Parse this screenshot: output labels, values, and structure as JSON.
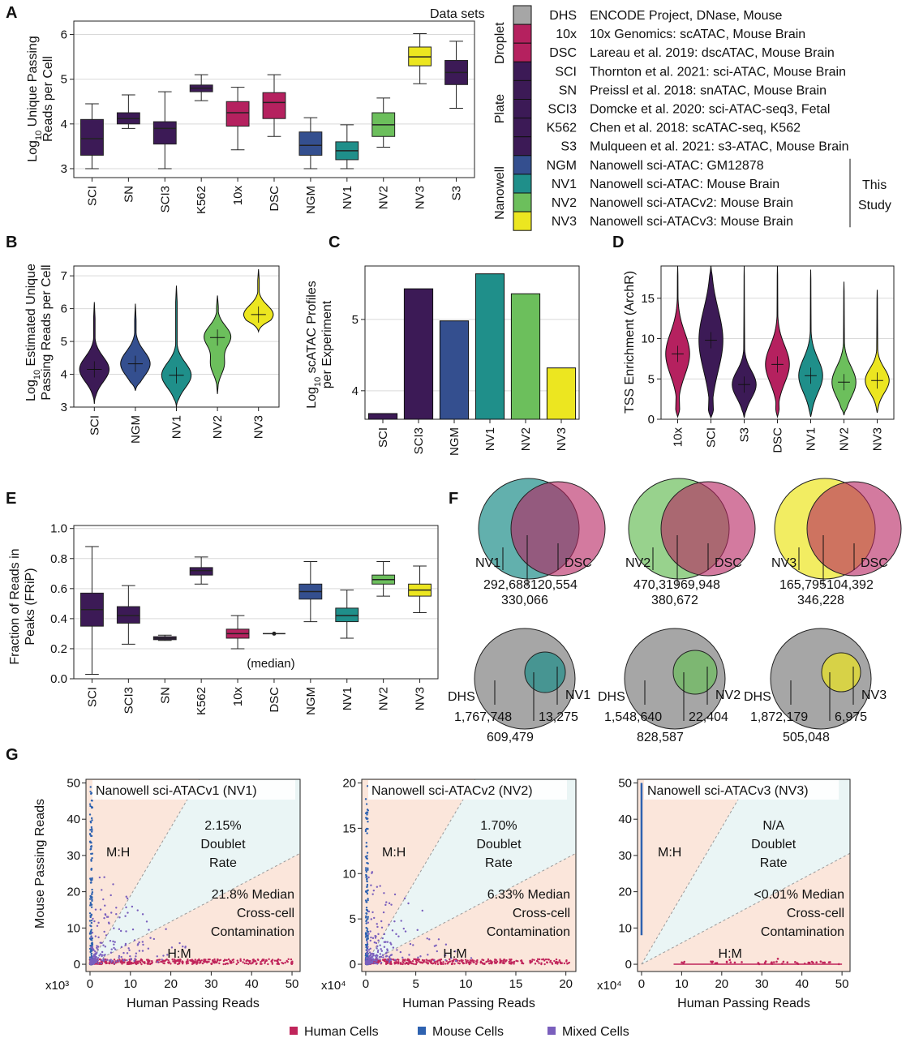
{
  "colors": {
    "DHS": "#a6a6a6",
    "10x": "#b5215f",
    "DSC": "#b5215f",
    "SCI": "#3c1a56",
    "SN": "#3c1a56",
    "SCI3": "#3c1a56",
    "K562": "#3c1a56",
    "S3": "#3c1a56",
    "NGM": "#344f8f",
    "NV1": "#1f8f8a",
    "NV2": "#6cbf5c",
    "NV3": "#ece620",
    "human": "#c0255b",
    "mouse": "#2e62b0",
    "mixed": "#7a5fbd",
    "region_pink": "#fbe6db",
    "region_blue": "#eaf5f5"
  },
  "panels": {
    "A": "A",
    "B": "B",
    "C": "C",
    "D": "D",
    "E": "E",
    "F": "F",
    "G": "G"
  },
  "legend": {
    "title": "Data sets",
    "groups": [
      {
        "name": "Droplet"
      },
      {
        "name": "Plate"
      },
      {
        "name": "Nanowell"
      }
    ],
    "entries": [
      {
        "code": "DHS",
        "desc": "ENCODE Project, DNase, Mouse"
      },
      {
        "code": "10x",
        "desc": "10x Genomics: scATAC, Mouse Brain"
      },
      {
        "code": "DSC",
        "desc": "Lareau et  al. 2019: dscATAC, Mouse Brain"
      },
      {
        "code": "SCI",
        "desc": "Thornton et al. 2021: sci-ATAC, Mouse Brain"
      },
      {
        "code": "SN",
        "desc": "Preissl et  al. 2018: snATAC, Mouse Brain"
      },
      {
        "code": "SCI3",
        "desc": "Domcke et al. 2020: sci-ATAC-seq3, Fetal"
      },
      {
        "code": "K562",
        "desc": "Chen et al. 2018: scATAC-seq, K562"
      },
      {
        "code": "S3",
        "desc": "Mulqueen et al. 2021: s3-ATAC, Mouse Brain"
      },
      {
        "code": "NGM",
        "desc": "Nanowell sci-ATAC: GM12878"
      },
      {
        "code": "NV1",
        "desc": "Nanowell sci-ATAC: Mouse Brain"
      },
      {
        "code": "NV2",
        "desc": "Nanowell sci-ATACv2: Mouse Brain"
      },
      {
        "code": "NV3",
        "desc": "Nanowell sci-ATACv3: Mouse Brain"
      }
    ],
    "study_line1": "This",
    "study_line2": "Study"
  },
  "chart_data": [
    {
      "id": "A",
      "type": "box",
      "ylabel_prefix": "Log",
      "ylabel_sub": "10",
      "ylabel_rest": " Unique Passing",
      "ylabel_line2": "Reads per Cell",
      "ylim": [
        2.8,
        6.3
      ],
      "yticks": [
        3,
        4,
        5,
        6
      ],
      "categories": [
        "SCI",
        "SN",
        "SCI3",
        "K562",
        "10x",
        "DSC",
        "NGM",
        "NV1",
        "NV2",
        "NV3",
        "S3"
      ],
      "boxes": [
        {
          "min": 3.0,
          "q1": 3.3,
          "median": 3.67,
          "q3": 4.1,
          "max": 4.45
        },
        {
          "min": 3.9,
          "q1": 4.0,
          "median": 4.12,
          "q3": 4.25,
          "max": 4.65
        },
        {
          "min": 3.0,
          "q1": 3.55,
          "median": 3.9,
          "q3": 4.05,
          "max": 4.72
        },
        {
          "min": 4.52,
          "q1": 4.72,
          "median": 4.8,
          "q3": 4.87,
          "max": 5.1
        },
        {
          "min": 3.42,
          "q1": 3.95,
          "median": 4.25,
          "q3": 4.5,
          "max": 4.82
        },
        {
          "min": 3.72,
          "q1": 4.12,
          "median": 4.48,
          "q3": 4.7,
          "max": 5.1
        },
        {
          "min": 3.0,
          "q1": 3.3,
          "median": 3.52,
          "q3": 3.82,
          "max": 4.14
        },
        {
          "min": 3.0,
          "q1": 3.2,
          "median": 3.4,
          "q3": 3.6,
          "max": 3.98
        },
        {
          "min": 3.48,
          "q1": 3.72,
          "median": 3.98,
          "q3": 4.25,
          "max": 4.58
        },
        {
          "min": 4.9,
          "q1": 5.3,
          "median": 5.5,
          "q3": 5.72,
          "max": 6.02
        },
        {
          "min": 4.35,
          "q1": 4.88,
          "median": 5.15,
          "q3": 5.42,
          "max": 5.85
        }
      ]
    },
    {
      "id": "B",
      "type": "violin",
      "ylabel_prefix": "Log",
      "ylabel_sub": "10",
      "ylabel_rest": " Estimated Unique",
      "ylabel_line2": "Passing Reads per Cell",
      "ylim": [
        3,
        7.3
      ],
      "yticks": [
        3,
        4,
        5,
        6,
        7
      ],
      "categories": [
        "SCI",
        "NGM",
        "NV1",
        "NV2",
        "NV3"
      ],
      "medians": [
        4.15,
        4.32,
        3.97,
        5.12,
        5.82
      ],
      "ranges": [
        [
          3.1,
          6.2
        ],
        [
          3.5,
          6.15
        ],
        [
          3.0,
          6.7
        ],
        [
          3.4,
          6.4
        ],
        [
          5.3,
          7.2
        ]
      ]
    },
    {
      "id": "C",
      "type": "bar",
      "ylabel_prefix": "Log",
      "ylabel_sub": "10",
      "ylabel_rest": " scATAC Profiles",
      "ylabel_line2": "per Experiment",
      "ylim": [
        3.6,
        5.75
      ],
      "yticks": [
        4,
        5
      ],
      "categories": [
        "SCI",
        "SCI3",
        "NGM",
        "NV1",
        "NV2",
        "NV3"
      ],
      "values": [
        3.68,
        5.43,
        4.98,
        5.64,
        5.36,
        4.32
      ]
    },
    {
      "id": "D",
      "type": "violin",
      "ylabel": "TSS Enrichment (ArchR)",
      "ylim": [
        0,
        19
      ],
      "yticks": [
        0,
        5,
        10,
        15
      ],
      "categories": [
        "10x",
        "SCI",
        "S3",
        "DSC",
        "NV1",
        "NV2",
        "NV3"
      ],
      "medians": [
        8.1,
        9.8,
        4.3,
        6.8,
        5.4,
        4.6,
        4.8
      ],
      "ranges": [
        [
          0.3,
          19
        ],
        [
          0.2,
          19
        ],
        [
          0.2,
          19
        ],
        [
          0.3,
          19
        ],
        [
          0.3,
          18.5
        ],
        [
          0.5,
          17
        ],
        [
          0.8,
          16
        ]
      ]
    },
    {
      "id": "E",
      "type": "box",
      "ylabel": "Fraction of Reads in",
      "ylabel_line2": "Peaks (FRiP)",
      "ylim": [
        0,
        1.02
      ],
      "yticks": [
        "0.0",
        "0.2",
        "0.4",
        "0.6",
        "0.8",
        "1.0"
      ],
      "categories": [
        "SCI",
        "SCI3",
        "SN",
        "K562",
        "10x",
        "DSC",
        "NGM",
        "NV1",
        "NV2",
        "NV3"
      ],
      "boxes": [
        {
          "min": 0.03,
          "q1": 0.35,
          "median": 0.46,
          "q3": 0.57,
          "max": 0.88
        },
        {
          "min": 0.23,
          "q1": 0.37,
          "median": 0.42,
          "q3": 0.48,
          "max": 0.62
        },
        {
          "min": 0.255,
          "q1": 0.26,
          "median": 0.27,
          "q3": 0.28,
          "max": 0.29
        },
        {
          "min": 0.63,
          "q1": 0.69,
          "median": 0.72,
          "q3": 0.74,
          "max": 0.81
        },
        {
          "min": 0.2,
          "q1": 0.27,
          "median": 0.3,
          "q3": 0.33,
          "max": 0.42
        },
        {
          "min": 0.3,
          "q1": 0.3,
          "median": 0.3,
          "q3": 0.3,
          "max": 0.3,
          "point": true
        },
        {
          "min": 0.38,
          "q1": 0.53,
          "median": 0.58,
          "q3": 0.63,
          "max": 0.78
        },
        {
          "min": 0.27,
          "q1": 0.38,
          "median": 0.42,
          "q3": 0.47,
          "max": 0.59
        },
        {
          "min": 0.55,
          "q1": 0.63,
          "median": 0.66,
          "q3": 0.69,
          "max": 0.78
        },
        {
          "min": 0.44,
          "q1": 0.55,
          "median": 0.59,
          "q3": 0.63,
          "max": 0.75
        }
      ],
      "annotation": "(median)"
    },
    {
      "id": "F",
      "type": "venn",
      "diagrams": [
        {
          "a": "NV1",
          "b": "DSC",
          "left": "292,688",
          "right": "120,554",
          "overlap": "330,066"
        },
        {
          "a": "NV2",
          "b": "DSC",
          "left": "470,319",
          "right": "69,948",
          "overlap": "380,672"
        },
        {
          "a": "NV3",
          "b": "DSC",
          "left": "165,795",
          "right": "104,392",
          "overlap": "346,228"
        },
        {
          "a": "DHS",
          "b": "NV1",
          "left": "1,767,748",
          "right": "13,275",
          "overlap": "609,479"
        },
        {
          "a": "DHS",
          "b": "NV2",
          "left": "1,548,640",
          "right": "22,404",
          "overlap": "828,587"
        },
        {
          "a": "DHS",
          "b": "NV3",
          "left": "1,872,179",
          "right": "6,975",
          "overlap": "505,048"
        }
      ]
    },
    {
      "id": "G",
      "type": "scatter",
      "ylabel": "Mouse Passing Reads",
      "xlabel": "Human Passing Reads",
      "legend": [
        "Human Cells",
        "Mouse Cells",
        "Mixed Cells"
      ],
      "plots": [
        {
          "title": "Nanowell sci-ATACv1 (NV1)",
          "scale": "x10³",
          "xlim": [
            -1,
            52
          ],
          "ylim": [
            -2,
            51
          ],
          "xticks": [
            0,
            10,
            20,
            30,
            40,
            50
          ],
          "yticks": [
            0,
            10,
            20,
            30,
            40,
            50
          ],
          "doublet": "2.15%",
          "doublet_l2": "Doublet",
          "doublet_l3": "Rate",
          "contam": "21.8% Median",
          "contam_l2": "Cross-cell",
          "contam_l3": "Contamination",
          "mh": "M:H",
          "hm": "H:M"
        },
        {
          "title": "Nanowell sci-ATACv2 (NV2)",
          "scale": "x10⁴",
          "xlim": [
            -0.4,
            21
          ],
          "ylim": [
            -0.8,
            20.4
          ],
          "xticks": [
            0,
            5,
            10,
            15,
            20
          ],
          "yticks": [
            0,
            5,
            10,
            15,
            20
          ],
          "doublet": "1.70%",
          "doublet_l2": "Doublet",
          "doublet_l3": "Rate",
          "contam": "6.33% Median",
          "contam_l2": "Cross-cell",
          "contam_l3": "Contamination",
          "mh": "M:H",
          "hm": "H:M"
        },
        {
          "title": "Nanowell sci-ATACv3 (NV3)",
          "scale": "x10⁴",
          "xlim": [
            -1,
            52
          ],
          "ylim": [
            -2,
            51
          ],
          "xticks": [
            0,
            10,
            20,
            30,
            40,
            50
          ],
          "yticks": [
            0,
            10,
            20,
            30,
            40,
            50
          ],
          "doublet": "N/A",
          "doublet_l2": "Doublet",
          "doublet_l3": "Rate",
          "contam": "<0.01% Median",
          "contam_l2": "Cross-cell",
          "contam_l3": "Contamination",
          "mh": "M:H",
          "hm": "H:M"
        }
      ]
    }
  ]
}
